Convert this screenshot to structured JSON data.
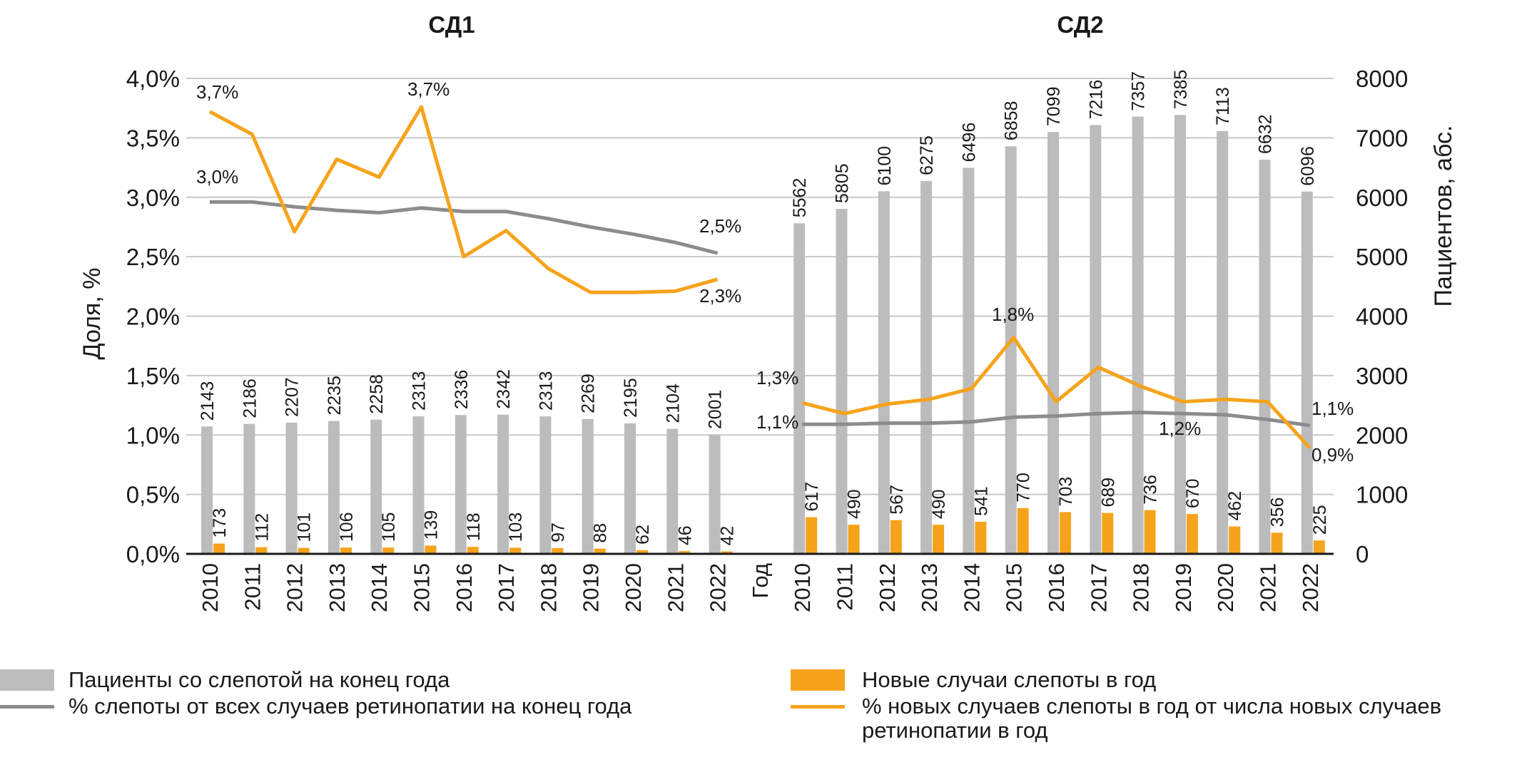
{
  "chart_data": {
    "type": "bar+line",
    "panels": [
      {
        "title": "СД1",
        "years": [
          "2010",
          "2011",
          "2012",
          "2013",
          "2014",
          "2015",
          "2016",
          "2017",
          "2018",
          "2019",
          "2020",
          "2021",
          "2022"
        ],
        "patients_end_of_year": [
          2143,
          2186,
          2207,
          2235,
          2258,
          2313,
          2336,
          2342,
          2313,
          2269,
          2195,
          2104,
          2001
        ],
        "new_cases": [
          173,
          112,
          101,
          106,
          105,
          139,
          118,
          103,
          97,
          88,
          62,
          46,
          42
        ],
        "pct_blind_of_retinopathy": [
          2.96,
          2.96,
          2.92,
          2.89,
          2.87,
          2.91,
          2.88,
          2.88,
          2.82,
          2.75,
          2.69,
          2.62,
          2.53
        ],
        "pct_new_blind_of_new_retinopathy": [
          3.72,
          3.53,
          2.71,
          3.32,
          3.17,
          3.76,
          2.5,
          2.72,
          2.4,
          2.2,
          2.2,
          2.21,
          2.31
        ],
        "annotations": [
          {
            "series": "orange",
            "index": 0,
            "text": "3,7%"
          },
          {
            "series": "orange",
            "index": 5,
            "text": "3,7%"
          },
          {
            "series": "gray",
            "index": 0,
            "text": "3,0%"
          },
          {
            "series": "gray",
            "index": 12,
            "text": "2,5%"
          },
          {
            "series": "orange",
            "index": 12,
            "text": "2,3%"
          }
        ]
      },
      {
        "title": "СД2",
        "years": [
          "2010",
          "2011",
          "2012",
          "2013",
          "2014",
          "2015",
          "2016",
          "2017",
          "2018",
          "2019",
          "2020",
          "2021",
          "2022"
        ],
        "patients_end_of_year": [
          5562,
          5805,
          6100,
          6275,
          6496,
          6858,
          7099,
          7216,
          7357,
          7385,
          7113,
          6632,
          6096
        ],
        "new_cases": [
          617,
          490,
          567,
          490,
          541,
          770,
          703,
          689,
          736,
          670,
          462,
          356,
          225
        ],
        "pct_blind_of_retinopathy": [
          1.09,
          1.09,
          1.1,
          1.1,
          1.11,
          1.15,
          1.16,
          1.18,
          1.19,
          1.18,
          1.17,
          1.13,
          1.08
        ],
        "pct_new_blind_of_new_retinopathy": [
          1.27,
          1.18,
          1.26,
          1.3,
          1.39,
          1.82,
          1.28,
          1.57,
          1.41,
          1.28,
          1.3,
          1.28,
          0.89
        ],
        "annotations": [
          {
            "series": "orange",
            "index": 0,
            "text": "1,3%"
          },
          {
            "series": "gray",
            "index": 0,
            "text": "1,1%"
          },
          {
            "series": "orange",
            "index": 5,
            "text": "1,8%"
          },
          {
            "series": "gray",
            "index": 9,
            "text": "1,2%"
          },
          {
            "series": "gray",
            "index": 12,
            "text": "1,1%"
          },
          {
            "series": "orange",
            "index": 12,
            "text": "0,9%"
          }
        ]
      }
    ],
    "gap_label": "Год",
    "ylabel_left": "Доля, %",
    "ylabel_right": "Пациентов, абс.",
    "yticks_left": [
      "0,0%",
      "0,5%",
      "1,0%",
      "1,5%",
      "2,0%",
      "2,5%",
      "3,0%",
      "3,5%",
      "4,0%"
    ],
    "yticks_right": [
      "0",
      "1000",
      "2000",
      "3000",
      "4000",
      "5000",
      "6000",
      "7000",
      "8000"
    ],
    "ylim_left": [
      0,
      4
    ],
    "ylim_right": [
      0,
      8000
    ],
    "grid": true,
    "colors": {
      "gray_bar": "#bcbcbd",
      "orange": "#f6a31c",
      "gray_line": "#8c8c8e"
    }
  },
  "legend": {
    "patients": "Пациенты со слепотой на конец года",
    "new_cases": "Новые случаи слепоты в год",
    "pct_blind": "% слепоты от всех случаев ретинопатии на конец года",
    "pct_new": "% новых случаев слепоты в год от числа новых случаев ретинопатии в год"
  }
}
